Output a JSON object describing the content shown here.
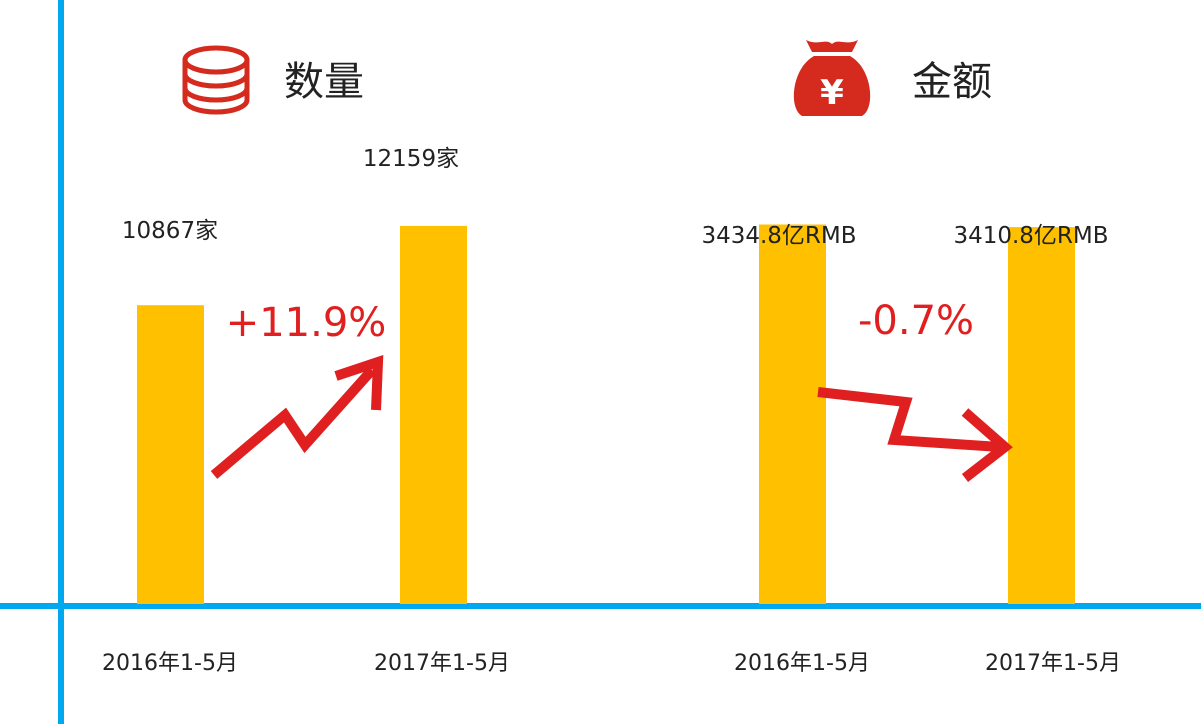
{
  "colors": {
    "bar": "#FFC000",
    "axis": "#00A8F0",
    "accent_red": "#E02020",
    "icon_red": "#D42B1E",
    "text": "#222222"
  },
  "icons": [
    "coin-stack-icon",
    "money-bag-yuan-icon"
  ],
  "chart_data": [
    {
      "type": "bar",
      "title": "数量",
      "categories": [
        "2016年1-5月",
        "2017年1-5月"
      ],
      "values": [
        10867,
        12159
      ],
      "value_labels": [
        "10867家",
        "12159家"
      ],
      "change_label": "+11.9%",
      "trend": "up",
      "ylim": [
        6000,
        13200
      ]
    },
    {
      "type": "bar",
      "title": "金额",
      "categories": [
        "2016年1-5月",
        "2017年1-5月"
      ],
      "values": [
        3434.8,
        3410.8
      ],
      "value_labels": [
        "3434.8亿RMB",
        "3410.8亿RMB"
      ],
      "change_label": "-0.7%",
      "trend": "down",
      "ylim": [
        0,
        4000
      ]
    }
  ]
}
